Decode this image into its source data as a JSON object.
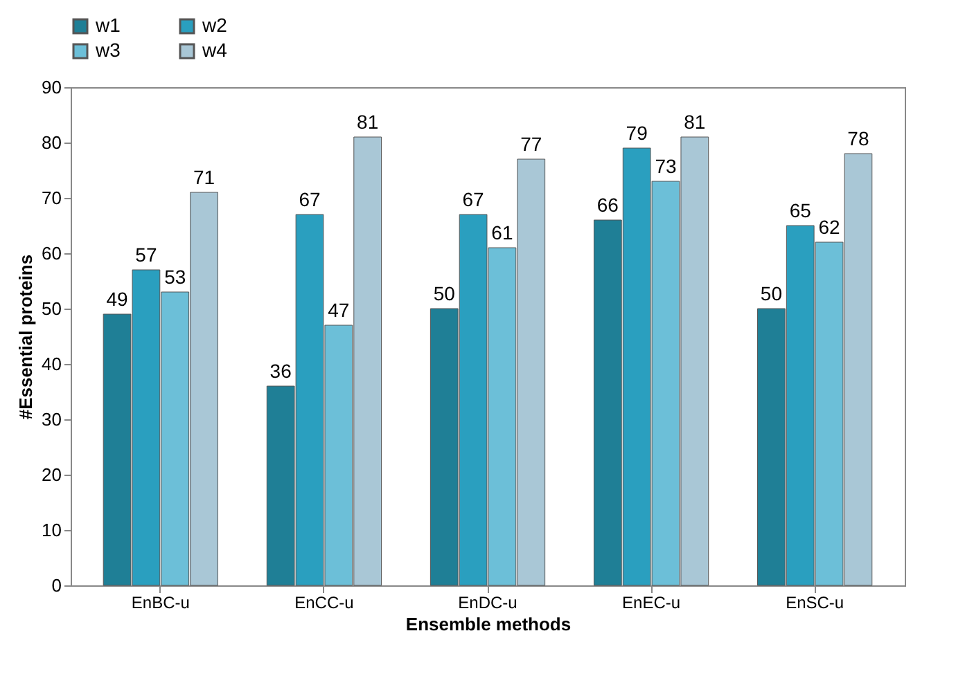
{
  "chart_data": {
    "type": "bar",
    "xlabel": "Ensemble methods",
    "ylabel": "#Essential proteins",
    "categories": [
      "EnBC-u",
      "EnCC-u",
      "EnDC-u",
      "EnEC-u",
      "EnSC-u"
    ],
    "series": [
      {
        "name": "w1",
        "color": "#1f7f96",
        "values": [
          49,
          36,
          50,
          66,
          50
        ]
      },
      {
        "name": "w2",
        "color": "#2a9fbf",
        "values": [
          57,
          67,
          67,
          79,
          65
        ]
      },
      {
        "name": "w3",
        "color": "#6cbfd8",
        "values": [
          53,
          47,
          61,
          73,
          62
        ]
      },
      {
        "name": "w4",
        "color": "#a9c7d6",
        "values": [
          71,
          81,
          77,
          81,
          78
        ]
      }
    ],
    "ylim": [
      0,
      90
    ],
    "yticks": [
      0,
      10,
      20,
      30,
      40,
      50,
      60,
      70,
      80,
      90
    ],
    "grid": false,
    "legend": "top left",
    "data_labels": true
  }
}
